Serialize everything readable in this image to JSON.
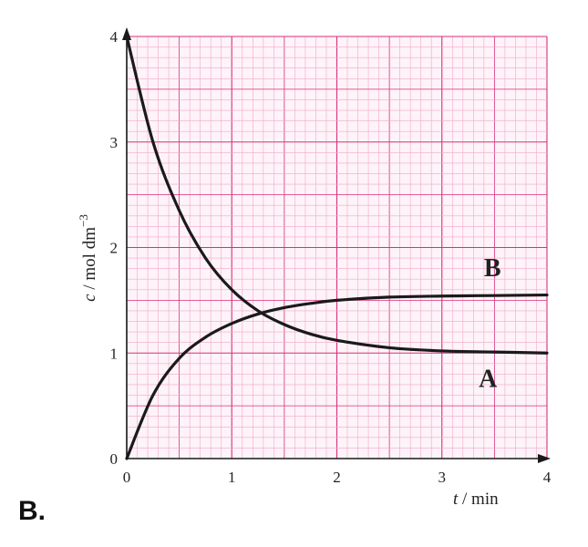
{
  "option_label": "B.",
  "colors": {
    "grid_fine": "#f2a9c8",
    "grid_major": "#d8307a",
    "curve": "#1a1a1a",
    "axis": "#1a1a1a"
  },
  "chart_data": {
    "type": "line",
    "title": "",
    "xlabel_var": "t",
    "xlabel_unit": " / min",
    "ylabel_var": "c",
    "ylabel_unit": " / mol dm",
    "ylabel_sup": "−3",
    "xlim": [
      0,
      4
    ],
    "ylim": [
      0,
      4
    ],
    "xticks": [
      "0",
      "1",
      "2",
      "3",
      "4"
    ],
    "yticks": [
      "0",
      "1",
      "2",
      "3",
      "4"
    ],
    "grid": true,
    "series": [
      {
        "name": "A",
        "x": [
          0,
          0.25,
          0.5,
          0.75,
          1.0,
          1.25,
          1.5,
          1.75,
          2.0,
          2.5,
          3.0,
          3.5,
          4.0
        ],
        "y": [
          4.0,
          3.0,
          2.35,
          1.9,
          1.6,
          1.4,
          1.27,
          1.18,
          1.12,
          1.05,
          1.02,
          1.01,
          1.0
        ]
      },
      {
        "name": "B",
        "x": [
          0,
          0.25,
          0.5,
          0.75,
          1.0,
          1.25,
          1.5,
          1.75,
          2.0,
          2.5,
          3.0,
          3.5,
          4.0
        ],
        "y": [
          0,
          0.6,
          0.95,
          1.15,
          1.28,
          1.37,
          1.43,
          1.47,
          1.5,
          1.53,
          1.54,
          1.545,
          1.55
        ]
      }
    ]
  }
}
